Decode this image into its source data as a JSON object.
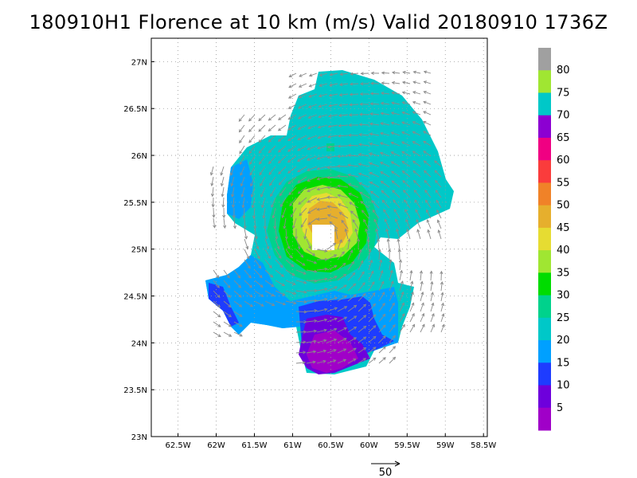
{
  "title": "180910H1 Florence at 10 km (m/s) Valid 20180910 1736Z",
  "map": {
    "lon_labels": [
      "62.5W",
      "62W",
      "61.5W",
      "61W",
      "60.5W",
      "60W",
      "59.5W",
      "59W",
      "58.5W"
    ],
    "lon_values": [
      -62.5,
      -62,
      -61.5,
      -61,
      -60.5,
      -60,
      -59.5,
      -59,
      -58.5
    ],
    "lat_labels": [
      "23N",
      "23.5N",
      "24N",
      "24.5N",
      "25N",
      "25.5N",
      "26N",
      "26.5N",
      "27N"
    ],
    "lat_values": [
      23,
      23.5,
      24,
      24.5,
      25,
      25.5,
      26,
      26.5,
      27
    ],
    "lon_range": [
      -62.85,
      -58.45
    ],
    "lat_range": [
      23,
      27.25
    ],
    "grid": true
  },
  "colorbar": {
    "labels": [
      "5",
      "10",
      "15",
      "20",
      "25",
      "30",
      "35",
      "40",
      "45",
      "50",
      "55",
      "60",
      "65",
      "70",
      "75",
      "80"
    ],
    "colors": [
      "#a000c8",
      "#6e00dc",
      "#1e3cff",
      "#00a0ff",
      "#00c8c8",
      "#00d28c",
      "#00dc00",
      "#a0e632",
      "#e6dc32",
      "#e6af2d",
      "#f08228",
      "#fa3c3c",
      "#f00082",
      "#8c00d2",
      "#00c8c8",
      "#a0e632",
      "#a0a0a0"
    ]
  },
  "vector_scale": {
    "label": "50"
  }
}
